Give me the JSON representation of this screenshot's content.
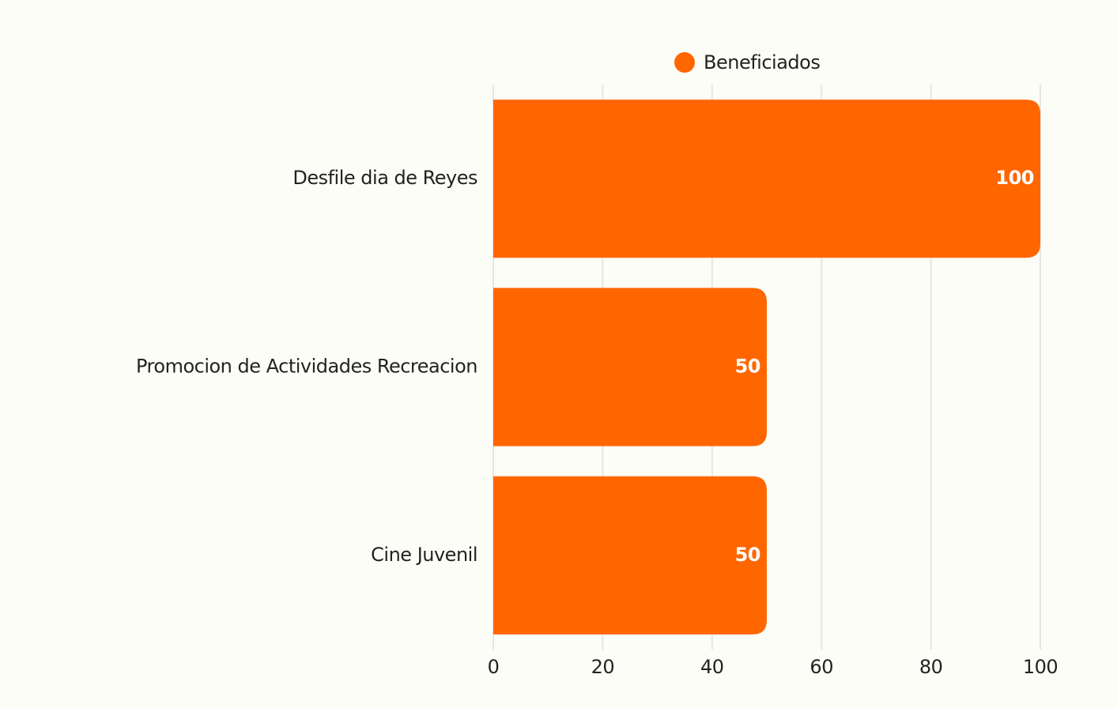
{
  "chart_data": {
    "type": "bar",
    "orientation": "horizontal",
    "categories": [
      "Desfile dia de Reyes",
      "Promocion de Actividades Recreacion",
      "Cine Juvenil"
    ],
    "series": [
      {
        "name": "Beneficiados",
        "color": "#ff6600",
        "values": [
          100,
          50,
          50
        ]
      }
    ],
    "xlim": [
      0,
      100
    ],
    "xticks": [
      0,
      20,
      40,
      60,
      80,
      100
    ],
    "grid": true,
    "legend": "top"
  }
}
